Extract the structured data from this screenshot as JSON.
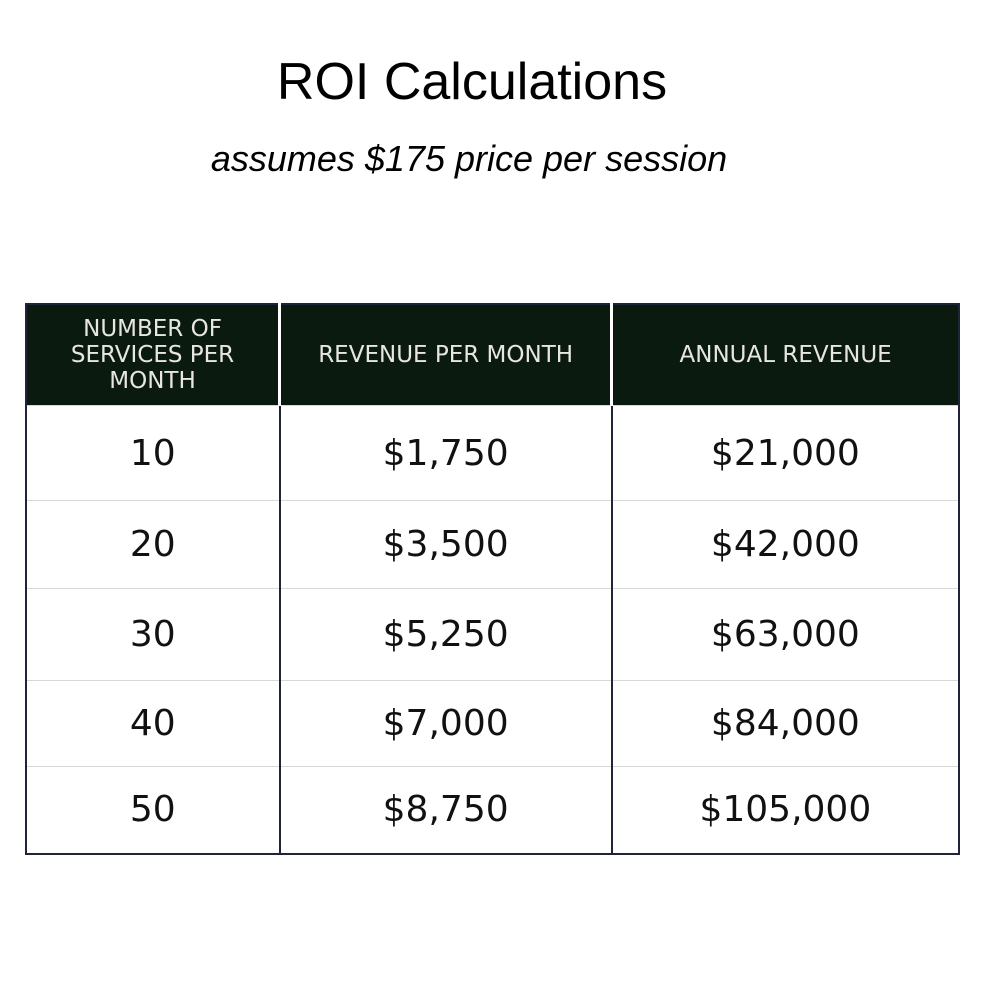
{
  "header": {
    "title": "ROI Calculations",
    "subtitle": "assumes $175 price per session"
  },
  "table": {
    "columns": [
      "Number of Services per Month",
      "Revenue per Month",
      "Annual Revenue"
    ],
    "rows": [
      [
        "10",
        "$1,750",
        "$21,000"
      ],
      [
        "20",
        "$3,500",
        "$42,000"
      ],
      [
        "30",
        "$5,250",
        "$63,000"
      ],
      [
        "40",
        "$7,000",
        "$84,000"
      ],
      [
        "50",
        "$8,750",
        "$105,000"
      ]
    ]
  }
}
